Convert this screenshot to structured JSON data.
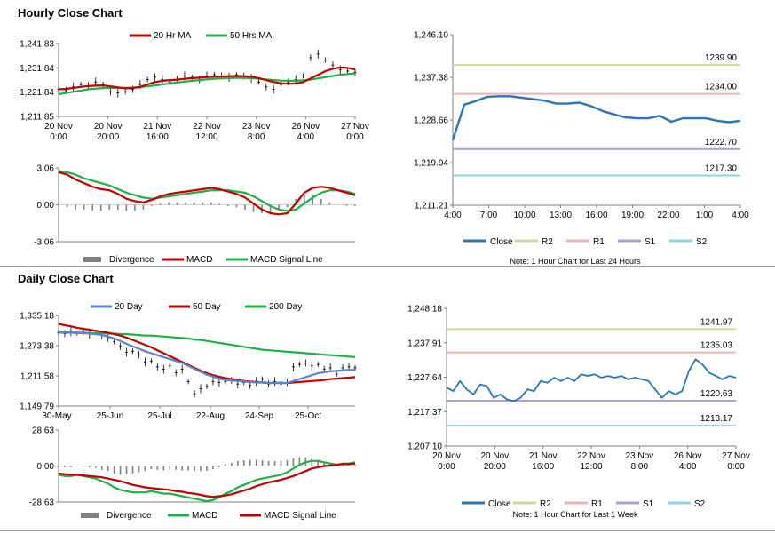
{
  "titles": {
    "hourly": "Hourly Close Chart",
    "daily": "Daily Close Chart"
  },
  "colors": {
    "ma_red": "#c00000",
    "ma_green": "#1fb04a",
    "ma_blue": "#5b86c8",
    "close_blue": "#2e75b6",
    "r2": "#c9dca0",
    "r1": "#e8b4b4",
    "s1": "#b39cd0",
    "s2": "#8fd3e0",
    "divergence": "#808080",
    "axis": "#808080"
  },
  "chart_data": [
    {
      "id": "hourly-ma",
      "type": "line",
      "title": "Hourly Close Chart",
      "legend": [
        "20 Hr MA",
        "50 Hrs MA"
      ],
      "y_ticks": [
        "1,241.83",
        "1,231.84",
        "1,221.84",
        "1,211.85"
      ],
      "ylim": [
        1211.85,
        1241.83
      ],
      "x_labels": [
        [
          "20 Nov",
          "0:00"
        ],
        [
          "20 Nov",
          "20:00"
        ],
        [
          "21 Nov",
          "16:00"
        ],
        [
          "22 Nov",
          "12:00"
        ],
        [
          "23 Nov",
          "8:00"
        ],
        [
          "26 Nov",
          "4:00"
        ],
        [
          "27 Nov",
          "0:00"
        ]
      ],
      "series": [
        {
          "name": "Price",
          "values": [
            1223,
            1222.5,
            1224,
            1225,
            1224.5,
            1226,
            1225,
            1222,
            1221.5,
            1222,
            1223,
            1225,
            1227,
            1228,
            1227,
            1226,
            1227,
            1228.5,
            1228,
            1227,
            1228.5,
            1229,
            1228.5,
            1228,
            1229,
            1228.5,
            1227.5,
            1226,
            1224,
            1223,
            1225,
            1226,
            1227,
            1228.5,
            1236,
            1237.5,
            1235,
            1233,
            1231,
            1230.5,
            1230
          ]
        },
        {
          "name": "20 Hr MA",
          "values": [
            1223,
            1223.2,
            1223.6,
            1224,
            1224.3,
            1224.5,
            1224.6,
            1224.2,
            1223.8,
            1223.4,
            1223.5,
            1224,
            1225,
            1226,
            1226.5,
            1226.8,
            1227,
            1227.3,
            1227.6,
            1227.8,
            1228,
            1228.2,
            1228.3,
            1228.4,
            1228.5,
            1228.4,
            1228.2,
            1227.6,
            1226.8,
            1226,
            1225.5,
            1225.3,
            1225.4,
            1226,
            1227.5,
            1229,
            1230.5,
            1231.5,
            1232,
            1231.8,
            1231.2
          ]
        },
        {
          "name": "50 Hrs MA",
          "values": [
            1221,
            1221.5,
            1222,
            1222.5,
            1223,
            1223.3,
            1223.5,
            1223.6,
            1223.6,
            1223.6,
            1223.7,
            1223.9,
            1224.2,
            1224.6,
            1225,
            1225.4,
            1225.8,
            1226.2,
            1226.5,
            1226.8,
            1227.1,
            1227.3,
            1227.5,
            1227.6,
            1227.7,
            1227.7,
            1227.6,
            1227.4,
            1227.1,
            1226.8,
            1226.6,
            1226.5,
            1226.5,
            1226.7,
            1227,
            1227.5,
            1228,
            1228.5,
            1229,
            1229.3,
            1229.5
          ]
        }
      ]
    },
    {
      "id": "hourly-macd",
      "type": "line",
      "legend": [
        "Divergence",
        "MACD",
        "MACD Signal Line"
      ],
      "y_ticks": [
        "3.06",
        "0.00",
        "-3.06"
      ],
      "ylim": [
        -3.06,
        3.06
      ],
      "series": [
        {
          "name": "MACD",
          "values": [
            2.7,
            2.5,
            2.1,
            1.8,
            1.5,
            1.3,
            1.2,
            0.9,
            0.5,
            0.3,
            0.2,
            0.4,
            0.7,
            0.9,
            1.0,
            1.1,
            1.2,
            1.3,
            1.4,
            1.3,
            1.1,
            0.9,
            0.6,
            0.1,
            -0.4,
            -0.7,
            -0.8,
            -0.7,
            0.1,
            1.0,
            1.4,
            1.5,
            1.4,
            1.2,
            1.0,
            0.8
          ]
        },
        {
          "name": "MACD Signal Line",
          "values": [
            2.8,
            2.7,
            2.5,
            2.2,
            2.0,
            1.8,
            1.6,
            1.3,
            1.0,
            0.8,
            0.6,
            0.5,
            0.6,
            0.7,
            0.8,
            0.9,
            1.0,
            1.1,
            1.2,
            1.2,
            1.2,
            1.1,
            1.0,
            0.7,
            0.3,
            -0.1,
            -0.4,
            -0.5,
            -0.4,
            0.1,
            0.6,
            1.0,
            1.2,
            1.2,
            1.1,
            0.9
          ]
        },
        {
          "name": "Divergence",
          "values": [
            -0.1,
            -0.2,
            -0.4,
            -0.4,
            -0.5,
            -0.5,
            -0.4,
            -0.4,
            -0.5,
            -0.5,
            -0.4,
            -0.1,
            0.1,
            0.2,
            0.2,
            0.2,
            0.2,
            0.2,
            0.2,
            0.1,
            -0.1,
            -0.2,
            -0.4,
            -0.6,
            -0.7,
            -0.6,
            -0.4,
            -0.2,
            0.5,
            0.9,
            0.8,
            0.5,
            0.2,
            0.0,
            -0.1,
            -0.1
          ]
        }
      ]
    },
    {
      "id": "hourly-levels",
      "type": "line",
      "y_ticks": [
        "1,246.10",
        "1,237.38",
        "1,228.66",
        "1,219.94",
        "1,211.21"
      ],
      "ylim": [
        1211.21,
        1246.1
      ],
      "x_labels": [
        "4:00",
        "7:00",
        "10:00",
        "13:00",
        "16:00",
        "19:00",
        "22:00",
        "1:00",
        "4:00"
      ],
      "legend": [
        "Close",
        "R2",
        "R1",
        "S1",
        "S2"
      ],
      "note": "Note: 1 Hour Chart for Last 24 Hours",
      "levels": [
        {
          "name": "R2",
          "value": 1239.9,
          "label": "1239.90"
        },
        {
          "name": "R1",
          "value": 1234.0,
          "label": "1234.00"
        },
        {
          "name": "S1",
          "value": 1222.7,
          "label": "1222.70"
        },
        {
          "name": "S2",
          "value": 1217.3,
          "label": "1217.30"
        }
      ],
      "series": [
        {
          "name": "Close",
          "values": [
            1224.5,
            1231.8,
            1232.5,
            1233.4,
            1233.5,
            1233.5,
            1233.2,
            1232.9,
            1232.6,
            1232.0,
            1232.0,
            1232.2,
            1231.5,
            1230.5,
            1229.8,
            1229.2,
            1229.0,
            1229.0,
            1229.5,
            1228.3,
            1229.0,
            1229.0,
            1229.0,
            1228.5,
            1228.2,
            1228.5
          ]
        }
      ]
    },
    {
      "id": "daily-ma",
      "type": "line",
      "title": "Daily Close Chart",
      "legend": [
        "20 Day",
        "50 Day",
        "200 Day"
      ],
      "y_ticks": [
        "1,335.18",
        "1,273.38",
        "1,211.58",
        "1,149.79"
      ],
      "ylim": [
        1149.79,
        1335.18
      ],
      "x_labels": [
        "30-May",
        "25-Jun",
        "25-Jul",
        "22-Aug",
        "24-Sep",
        "25-Oct"
      ],
      "series": [
        {
          "name": "Price",
          "values": [
            1300,
            1298,
            1302,
            1299,
            1303,
            1297,
            1300,
            1294,
            1290,
            1282,
            1272,
            1260,
            1262,
            1255,
            1240,
            1242,
            1230,
            1225,
            1232,
            1218,
            1225,
            1200,
            1175,
            1185,
            1190,
            1200,
            1198,
            1200,
            1202,
            1195,
            1198,
            1192,
            1200,
            1205,
            1195,
            1200,
            1195,
            1198,
            1230,
            1235,
            1238,
            1232,
            1235,
            1225,
            1228,
            1215,
            1228,
            1230,
            1228
          ]
        },
        {
          "name": "20 Day",
          "values": [
            1300,
            1300,
            1300,
            1299,
            1299,
            1298,
            1297,
            1295,
            1292,
            1288,
            1283,
            1277,
            1272,
            1267,
            1262,
            1258,
            1254,
            1250,
            1246,
            1242,
            1238,
            1232,
            1226,
            1220,
            1214,
            1210,
            1206,
            1203,
            1202,
            1201,
            1200,
            1199,
            1198,
            1198,
            1197,
            1197,
            1197,
            1197,
            1201,
            1205,
            1209,
            1213,
            1217,
            1219,
            1221,
            1222,
            1223,
            1224,
            1224
          ]
        },
        {
          "name": "50 Day",
          "values": [
            1318,
            1315,
            1313,
            1310,
            1308,
            1306,
            1304,
            1302,
            1300,
            1297,
            1294,
            1290,
            1285,
            1280,
            1275,
            1270,
            1264,
            1258,
            1252,
            1246,
            1240,
            1234,
            1228,
            1222,
            1217,
            1213,
            1210,
            1207,
            1205,
            1203,
            1201,
            1200,
            1199,
            1198,
            1197,
            1197,
            1197,
            1197,
            1198,
            1199,
            1200,
            1201,
            1202,
            1203,
            1205,
            1206,
            1207,
            1208,
            1209
          ]
        },
        {
          "name": "200 Day",
          "values": [
            1302,
            1301,
            1301,
            1300,
            1300,
            1299,
            1299,
            1299,
            1298,
            1298,
            1297,
            1297,
            1296,
            1295,
            1294,
            1294,
            1293,
            1292,
            1291,
            1290,
            1289,
            1288,
            1286,
            1285,
            1283,
            1281,
            1279,
            1277,
            1275,
            1273,
            1271,
            1269,
            1267,
            1265,
            1264,
            1263,
            1262,
            1261,
            1260,
            1259,
            1258,
            1257,
            1256,
            1255,
            1254,
            1253,
            1252,
            1251,
            1250
          ]
        }
      ]
    },
    {
      "id": "daily-macd",
      "type": "line",
      "legend": [
        "Divergence",
        "MACD",
        "MACD Signal Line"
      ],
      "y_ticks": [
        "28.63",
        "0.00",
        "-28.63"
      ],
      "ylim": [
        -28.63,
        28.63
      ],
      "series": [
        {
          "name": "MACD",
          "values": [
            -7,
            -8,
            -8,
            -7,
            -8,
            -9,
            -10,
            -12,
            -14,
            -17,
            -19,
            -20,
            -21,
            -21,
            -21,
            -20,
            -21,
            -22,
            -22,
            -23,
            -24,
            -25,
            -26,
            -27,
            -28,
            -27,
            -25,
            -22,
            -20,
            -17,
            -15,
            -13,
            -11,
            -10,
            -9,
            -8,
            -7,
            -5,
            -2,
            1,
            3,
            4,
            4,
            3,
            2,
            1,
            2,
            2,
            3
          ]
        },
        {
          "name": "MACD Signal Line",
          "values": [
            -6,
            -6.5,
            -7,
            -7,
            -7.5,
            -8,
            -8.5,
            -9,
            -10,
            -11,
            -12,
            -13.5,
            -15,
            -16,
            -17,
            -17.5,
            -18,
            -18.5,
            -19,
            -20,
            -20.5,
            -21.5,
            -22,
            -23,
            -24,
            -24.5,
            -24,
            -23.5,
            -22.5,
            -21,
            -19.5,
            -18,
            -16,
            -14.5,
            -13,
            -12,
            -11,
            -9.5,
            -8,
            -6,
            -4,
            -2,
            -1,
            0,
            0.5,
            1,
            1.5,
            1.5,
            2
          ]
        },
        {
          "name": "Divergence",
          "values": [
            -1,
            -1,
            -1,
            0,
            -0.5,
            -1,
            -1.5,
            -3,
            -4,
            -6,
            -7,
            -6.5,
            -6,
            -5,
            -4,
            -2.5,
            -3,
            -3.5,
            -3,
            -3,
            -3.5,
            -3.5,
            -4,
            -4,
            -4,
            -2.5,
            -1,
            1.5,
            2.5,
            4,
            4.5,
            5,
            5,
            4.5,
            4,
            4,
            4,
            4.5,
            6,
            7,
            7,
            6,
            5,
            3,
            1.5,
            0,
            0.5,
            0.5,
            1
          ]
        }
      ]
    },
    {
      "id": "daily-levels",
      "type": "line",
      "y_ticks": [
        "1,248.18",
        "1,237.91",
        "1,227.64",
        "1,217.37",
        "1,207.10"
      ],
      "ylim": [
        1207.1,
        1248.18
      ],
      "x_labels": [
        [
          "20 Nov",
          "0:00"
        ],
        [
          "20 Nov",
          "20:00"
        ],
        [
          "21 Nov",
          "16:00"
        ],
        [
          "22 Nov",
          "12:00"
        ],
        [
          "23 Nov",
          "8:00"
        ],
        [
          "26 Nov",
          "4:00"
        ],
        [
          "27 Nov",
          "0:00"
        ]
      ],
      "legend": [
        "Close",
        "R2",
        "R1",
        "S1",
        "S2"
      ],
      "note": "Note: 1 Hour Chart for Last 1 Week",
      "levels": [
        {
          "name": "R2",
          "value": 1241.97,
          "label": "1241.97"
        },
        {
          "name": "R1",
          "value": 1235.03,
          "label": "1235.03"
        },
        {
          "name": "S1",
          "value": 1220.63,
          "label": "1220.63"
        },
        {
          "name": "S2",
          "value": 1213.17,
          "label": "1213.17"
        }
      ],
      "series": [
        {
          "name": "Close",
          "values": [
            1224.5,
            1223.5,
            1226.5,
            1224.0,
            1222.5,
            1225.5,
            1225.0,
            1221.5,
            1222.5,
            1221.0,
            1220.5,
            1221.5,
            1224.0,
            1223.5,
            1226.5,
            1226.0,
            1227.5,
            1226.5,
            1227.5,
            1226.5,
            1228.5,
            1228.0,
            1228.5,
            1227.5,
            1228.0,
            1227.5,
            1228.0,
            1227.0,
            1227.5,
            1227.0,
            1226.5,
            1224.0,
            1221.5,
            1223.5,
            1222.5,
            1223.5,
            1229.5,
            1233.0,
            1231.5,
            1229.0,
            1228.0,
            1227.0,
            1228.0,
            1227.5
          ]
        }
      ]
    }
  ]
}
